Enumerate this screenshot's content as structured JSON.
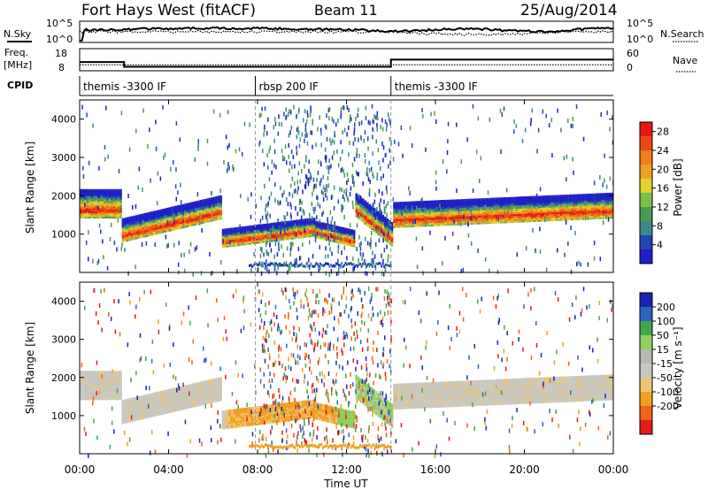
{
  "header": {
    "title": "Fort Hays West (fitACF)",
    "beam": "Beam 11",
    "date": "25/Aug/2014"
  },
  "noise_panel": {
    "left_label": "N.Sky",
    "right_label": "N.Search",
    "left_ticks": [
      "10^5",
      "10^0"
    ],
    "right_ticks": [
      "10^5",
      "10^0"
    ]
  },
  "freq_panel": {
    "left_label_1": "Freq.",
    "left_label_2": "[MHz]",
    "left_ticks": [
      "18",
      "8"
    ],
    "right_label": "Nave",
    "right_ticks": [
      "60",
      "0"
    ],
    "freq_segments": [
      {
        "start_hr": 0.0,
        "end_hr": 2.0,
        "freq_mhz": 13.5
      },
      {
        "start_hr": 2.0,
        "end_hr": 14.0,
        "freq_mhz": 10.5
      },
      {
        "start_hr": 14.0,
        "end_hr": 24.0,
        "freq_mhz": 15.0
      }
    ],
    "nave_value": 20
  },
  "cpid": {
    "label": "CPID",
    "segments": [
      {
        "name": "themis -3300 IF",
        "start_hr": 0.0,
        "end_hr": 7.9
      },
      {
        "name": "rbsp 200 IF",
        "start_hr": 7.9,
        "end_hr": 14.0
      },
      {
        "name": "themis -3300 IF",
        "start_hr": 14.0,
        "end_hr": 24.0
      }
    ]
  },
  "colors": {
    "power_scale": [
      "#1f1fc8",
      "#2246b4",
      "#3a8a8a",
      "#4d9b50",
      "#7cc04a",
      "#e0d32a",
      "#f0a020",
      "#f07c1c",
      "#ec4a14",
      "#e41a10"
    ],
    "velocity_scale": [
      "#e21b1b",
      "#ee6418",
      "#f0a01e",
      "#f0c470",
      "#c8c8c0",
      "#b8b8b0",
      "#8fd060",
      "#3ea84a",
      "#2e64be",
      "#1a24b4"
    ]
  },
  "chart_data": [
    {
      "type": "heatmap",
      "name": "power",
      "ylabel": "Slant Range [km]",
      "ylim": [
        0,
        4500
      ],
      "yticks": [
        "1000",
        "2000",
        "3000",
        "4000"
      ],
      "xlim_hr": [
        0,
        24
      ],
      "colorbar_label": "Power [dB]",
      "colorbar_ticks": [
        "4",
        "8",
        "12",
        "16",
        "20",
        "24",
        "28"
      ],
      "colorbar_range": [
        0,
        30
      ],
      "echo_bands": [
        {
          "start_hr": 0.0,
          "end_hr": 1.9,
          "range_start_km": 1800,
          "range_end_km": 1800,
          "width_km": 650
        },
        {
          "start_hr": 1.9,
          "end_hr": 6.3,
          "range_start_km": 1100,
          "range_end_km": 1700,
          "width_km": 500
        },
        {
          "start_hr": 6.3,
          "end_hr": 10.5,
          "range_start_km": 900,
          "range_end_km": 1200,
          "width_km": 400
        },
        {
          "start_hr": 10.5,
          "end_hr": 12.3,
          "range_start_km": 1150,
          "range_end_km": 900,
          "width_km": 350
        },
        {
          "start_hr": 12.3,
          "end_hr": 14.0,
          "range_start_km": 1800,
          "range_end_km": 1000,
          "width_km": 500
        },
        {
          "start_hr": 14.0,
          "end_hr": 24.0,
          "range_start_km": 1500,
          "range_end_km": 1750,
          "width_km": 550
        }
      ]
    },
    {
      "type": "heatmap",
      "name": "velocity",
      "ylabel": "Slant Range [km]",
      "ylim": [
        0,
        4500
      ],
      "yticks": [
        "1000",
        "2000",
        "3000",
        "4000"
      ],
      "xlim_hr": [
        0,
        24
      ],
      "xticks": [
        "00:00",
        "04:00",
        "08:00",
        "12:00",
        "16:00",
        "20:00",
        "00:00"
      ],
      "xlabel": "Time UT",
      "colorbar_label": "Velocity [m s⁻¹]",
      "colorbar_ticks": [
        "200",
        "100",
        "50",
        "15",
        "-15",
        "-50",
        "-100",
        "-200"
      ]
    }
  ]
}
